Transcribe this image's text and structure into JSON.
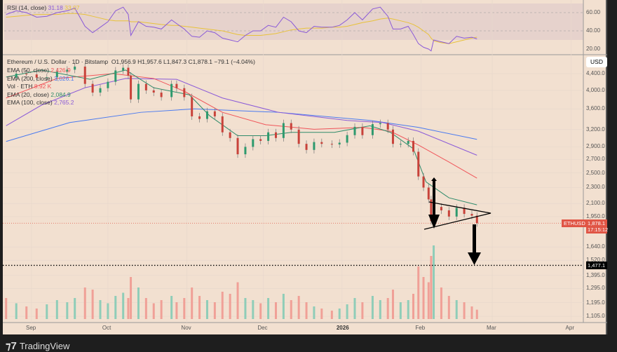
{
  "chart_data": {
    "type": "candlestick",
    "symbol": "Ethereum / U.S. Dollar · 1D · Bitstamp",
    "ohlc": {
      "open": "O1,956.9",
      "high": "H1,957.6",
      "low": "L1,847.3",
      "close": "C1,878.1",
      "change": "−79.1 (−4.04%)"
    },
    "legend": [
      {
        "label": "EMA (50, close)",
        "value": "2,426.9",
        "color": "#f0555a"
      },
      {
        "label": "EMA (200, close)",
        "value": "3,026.1",
        "color": "#4a7af0"
      },
      {
        "label": "Vol · ETH",
        "value": "8.92 K",
        "color": "#f0555a"
      },
      {
        "label": "EMA (20, close)",
        "value": "2,084.9",
        "color": "#2e8b6a"
      },
      {
        "label": "EMA (100, close)",
        "value": "2,765.2",
        "color": "#8a5ad8"
      }
    ],
    "rsi": {
      "label": "RSI (14, close)",
      "value": "31.18",
      "ma_value": "33.07",
      "ticks": [
        "60.00",
        "40.00",
        "20.00"
      ]
    },
    "y_ticks": [
      "4,400.0",
      "4,000.0",
      "3,600.0",
      "3,200.0",
      "2,900.0",
      "2,700.0",
      "2,500.0",
      "2,300.0",
      "2,100.0",
      "1,950.0",
      "1,640.0",
      "1,520.0",
      "1,395.0",
      "1,295.0",
      "1,195.0",
      "1,105.0"
    ],
    "y_scale": "log",
    "currency": "USD",
    "x_ticks": [
      "Sep",
      "Oct",
      "Nov",
      "Dec",
      "2026",
      "Feb",
      "Mar",
      "Apr"
    ],
    "last_price": {
      "symbol": "ETHUSD",
      "price": "1,878.1",
      "countdown": "17:15:12"
    },
    "target_line": "1,477.1",
    "closes": [
      [
        "2025-08-22",
        4300
      ],
      [
        "2025-08-26",
        4400
      ],
      [
        "2025-08-30",
        4380
      ],
      [
        "2025-09-03",
        4300
      ],
      [
        "2025-09-07",
        4310
      ],
      [
        "2025-09-11",
        4450
      ],
      [
        "2025-09-15",
        4500
      ],
      [
        "2025-09-18",
        4580
      ],
      [
        "2025-09-22",
        4150
      ],
      [
        "2025-09-25",
        3950
      ],
      [
        "2025-09-28",
        4050
      ],
      [
        "2025-10-01",
        4200
      ],
      [
        "2025-10-04",
        4480
      ],
      [
        "2025-10-07",
        4550
      ],
      [
        "2025-10-09",
        4350
      ],
      [
        "2025-10-10",
        3800
      ],
      [
        "2025-10-13",
        4150
      ],
      [
        "2025-10-16",
        4000
      ],
      [
        "2025-10-19",
        3950
      ],
      [
        "2025-10-22",
        3850
      ],
      [
        "2025-10-26",
        4150
      ],
      [
        "2025-10-28",
        4050
      ],
      [
        "2025-10-31",
        3850
      ],
      [
        "2025-11-03",
        3450
      ],
      [
        "2025-11-06",
        3400
      ],
      [
        "2025-11-09",
        3550
      ],
      [
        "2025-11-12",
        3450
      ],
      [
        "2025-11-15",
        3150
      ],
      [
        "2025-11-18",
        3050
      ],
      [
        "2025-11-21",
        2780
      ],
      [
        "2025-11-24",
        2900
      ],
      [
        "2025-11-27",
        3030
      ],
      [
        "2025-11-30",
        3000
      ],
      [
        "2025-12-03",
        3150
      ],
      [
        "2025-12-06",
        3050
      ],
      [
        "2025-12-09",
        3320
      ],
      [
        "2025-12-12",
        3200
      ],
      [
        "2025-12-15",
        2950
      ],
      [
        "2025-12-18",
        2850
      ],
      [
        "2025-12-21",
        2980
      ],
      [
        "2025-12-24",
        2950
      ],
      [
        "2025-12-28",
        2940
      ],
      [
        "2025-12-31",
        2970
      ],
      [
        "2026-01-03",
        3100
      ],
      [
        "2026-01-06",
        3250
      ],
      [
        "2026-01-09",
        3100
      ],
      [
        "2026-01-13",
        3300
      ],
      [
        "2026-01-16",
        3320
      ],
      [
        "2026-01-19",
        3200
      ],
      [
        "2026-01-21",
        2950
      ],
      [
        "2026-01-24",
        2950
      ],
      [
        "2026-01-27",
        3000
      ],
      [
        "2026-01-29",
        2820
      ],
      [
        "2026-01-31",
        2450
      ],
      [
        "2026-02-02",
        2300
      ],
      [
        "2026-02-04",
        2150
      ],
      [
        "2026-02-05",
        1900
      ],
      [
        "2026-02-06",
        2060
      ],
      [
        "2026-02-09",
        2020
      ],
      [
        "2026-02-12",
        1950
      ],
      [
        "2026-02-15",
        2050
      ],
      [
        "2026-02-18",
        1980
      ],
      [
        "2026-02-21",
        1960
      ],
      [
        "2026-02-23",
        1878.1
      ]
    ],
    "volume_k": [
      20,
      15,
      12,
      10,
      14,
      18,
      16,
      20,
      30,
      28,
      18,
      15,
      22,
      25,
      20,
      40,
      30,
      20,
      15,
      18,
      22,
      16,
      20,
      30,
      22,
      18,
      16,
      26,
      24,
      35,
      20,
      18,
      15,
      20,
      16,
      24,
      18,
      22,
      16,
      12,
      10,
      8,
      10,
      14,
      20,
      16,
      22,
      18,
      20,
      28,
      16,
      18,
      24,
      50,
      40,
      35,
      60,
      70,
      30,
      22,
      18,
      16,
      12,
      8.92
    ],
    "rsi_values": [
      58,
      62,
      60,
      55,
      56,
      60,
      62,
      65,
      45,
      38,
      44,
      50,
      62,
      66,
      58,
      35,
      50,
      45,
      44,
      42,
      52,
      48,
      42,
      34,
      33,
      40,
      38,
      32,
      30,
      28,
      35,
      40,
      40,
      46,
      44,
      55,
      50,
      40,
      38,
      45,
      44,
      44,
      46,
      52,
      60,
      52,
      64,
      66,
      56,
      42,
      42,
      45,
      36,
      26,
      22,
      20,
      18,
      30,
      28,
      26,
      34,
      32,
      33,
      31.18
    ],
    "rsi_ma": [
      55,
      56,
      57,
      58,
      58,
      58,
      59,
      59,
      58,
      56,
      54,
      52,
      51,
      51,
      51,
      50,
      50,
      49,
      48,
      47,
      46,
      46,
      45,
      44,
      43,
      42,
      41,
      40,
      38,
      36,
      35,
      35,
      35,
      36,
      37,
      39,
      41,
      42,
      43,
      43,
      43,
      44,
      44,
      45,
      47,
      49,
      51,
      53,
      54,
      53,
      51,
      49,
      47,
      44,
      40,
      36,
      32,
      29,
      27,
      26,
      28,
      30,
      32,
      33.07
    ],
    "ema20": [
      [
        "2025-08-22",
        4315
      ],
      [
        "2025-09-05",
        4490
      ],
      [
        "2025-09-24",
        4260
      ],
      [
        "2025-10-08",
        4490
      ],
      [
        "2025-10-19",
        4060
      ],
      [
        "2025-11-02",
        3900
      ],
      [
        "2025-11-10",
        3460
      ],
      [
        "2025-11-21",
        3090
      ],
      [
        "2025-12-02",
        3090
      ],
      [
        "2025-12-12",
        3150
      ],
      [
        "2025-12-29",
        3150
      ],
      [
        "2026-01-12",
        3270
      ],
      [
        "2026-01-20",
        3150
      ],
      [
        "2026-01-29",
        2870
      ],
      [
        "2026-02-03",
        2375
      ],
      [
        "2026-02-12",
        2170
      ],
      [
        "2026-02-23",
        2084.9
      ]
    ],
    "ema50": [
      [
        "2025-08-22",
        3830
      ],
      [
        "2025-09-11",
        4280
      ],
      [
        "2025-10-03",
        4400
      ],
      [
        "2025-10-19",
        4280
      ],
      [
        "2025-10-31",
        3980
      ],
      [
        "2025-11-15",
        3530
      ],
      [
        "2025-12-02",
        3290
      ],
      [
        "2025-12-21",
        3205
      ],
      [
        "2026-01-09",
        3240
      ],
      [
        "2026-01-20",
        3170
      ],
      [
        "2026-01-31",
        2930
      ],
      [
        "2026-02-12",
        2660
      ],
      [
        "2026-02-23",
        2426.9
      ]
    ],
    "ema100": [
      [
        "2025-08-22",
        3270
      ],
      [
        "2025-09-05",
        3680
      ],
      [
        "2025-09-22",
        4060
      ],
      [
        "2025-10-08",
        4280
      ],
      [
        "2025-10-28",
        4260
      ],
      [
        "2025-11-15",
        3830
      ],
      [
        "2025-12-07",
        3530
      ],
      [
        "2026-01-03",
        3370
      ],
      [
        "2026-01-17",
        3330
      ],
      [
        "2026-01-31",
        3170
      ],
      [
        "2026-02-23",
        2765.2
      ]
    ],
    "ema200": [
      [
        "2025-08-22",
        2990
      ],
      [
        "2025-09-16",
        3330
      ],
      [
        "2025-10-14",
        3530
      ],
      [
        "2025-11-04",
        3600
      ],
      [
        "2025-12-07",
        3530
      ],
      [
        "2026-01-12",
        3370
      ],
      [
        "2026-01-31",
        3240
      ],
      [
        "2026-02-23",
        3026.1
      ]
    ]
  },
  "brand": "TradingView"
}
